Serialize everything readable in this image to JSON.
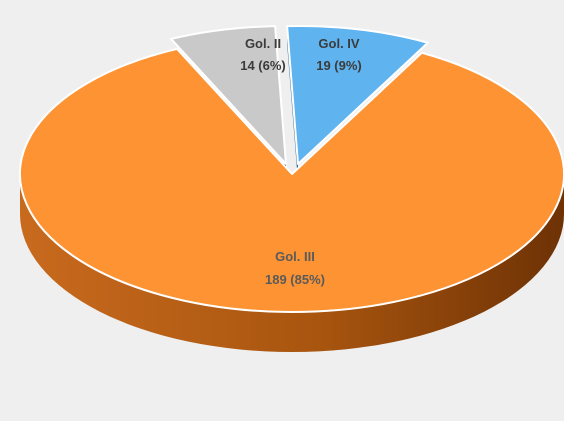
{
  "chart_data": {
    "type": "pie",
    "title": "",
    "slices": [
      {
        "name": "Gol. II",
        "value": 14,
        "percent": "6%",
        "color": "#c9c9c9",
        "side_color": "#3d3d3d"
      },
      {
        "name": "Gol. IV",
        "value": 19,
        "percent": "9%",
        "color": "#5fb3ef",
        "side_color": "#2d6b97"
      },
      {
        "name": "Gol. III",
        "value": 189,
        "percent": "85%",
        "color": "#fd9333",
        "side_color": "#b45a12"
      }
    ],
    "labels": [
      {
        "name": "Gol. II",
        "value_text": "14 (6%)"
      },
      {
        "name": "Gol. IV",
        "value_text": "19 (9%)"
      },
      {
        "name": "Gol. III",
        "value_text": "189 (85%)"
      }
    ]
  }
}
